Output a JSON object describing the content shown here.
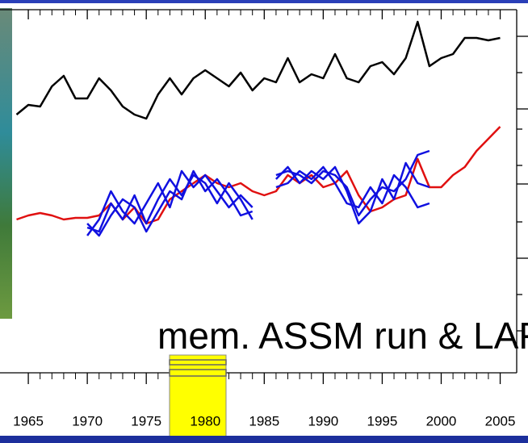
{
  "chart_data": {
    "type": "line",
    "annotation": "mem. ASSM run & LAF",
    "x": [
      1964,
      1965,
      1966,
      1967,
      1968,
      1969,
      1970,
      1971,
      1972,
      1973,
      1974,
      1975,
      1976,
      1977,
      1978,
      1979,
      1980,
      1981,
      1982,
      1983,
      1984,
      1985,
      1986,
      1987,
      1988,
      1989,
      1990,
      1991,
      1992,
      1993,
      1994,
      1995,
      1996,
      1997,
      1998,
      1999,
      2000,
      2001,
      2002,
      2003,
      2004,
      2005
    ],
    "xlim": [
      1962.6,
      2006.4
    ],
    "xticks": [
      1965,
      1970,
      1975,
      1980,
      1985,
      1990,
      1995,
      2000,
      2005
    ],
    "ylim": [
      0,
      450
    ],
    "series": [
      {
        "color": "#000000",
        "values": [
          320,
          332,
          330,
          355,
          368,
          340,
          340,
          365,
          350,
          330,
          320,
          315,
          345,
          365,
          345,
          365,
          375,
          365,
          355,
          372,
          350,
          365,
          360,
          390,
          360,
          370,
          365,
          395,
          365,
          360,
          380,
          385,
          370,
          390,
          435,
          380,
          390,
          395,
          415,
          415,
          412,
          415
        ]
      },
      {
        "color": "#e01010",
        "values": [
          190,
          195,
          198,
          195,
          190,
          192,
          192,
          195,
          210,
          190,
          205,
          185,
          190,
          215,
          225,
          235,
          245,
          235,
          230,
          235,
          225,
          220,
          225,
          245,
          235,
          245,
          230,
          235,
          250,
          220,
          200,
          205,
          215,
          220,
          265,
          230,
          230,
          245,
          255,
          275,
          290,
          305
        ]
      },
      {
        "color": "#1010e0",
        "values": [
          null,
          null,
          null,
          null,
          null,
          null,
          180,
          175,
          210,
          190,
          220,
          185,
          215,
          240,
          220,
          245,
          235,
          210,
          235,
          215,
          190,
          null,
          245,
          250,
          245,
          235,
          250,
          245,
          230,
          195,
          215,
          230,
          225,
          240,
          270,
          275,
          null,
          null,
          null,
          null,
          null,
          null
        ]
      },
      {
        "color": "#1010e0",
        "values": [
          null,
          null,
          null,
          null,
          null,
          null,
          170,
          190,
          225,
          200,
          185,
          210,
          235,
          205,
          250,
          230,
          245,
          225,
          205,
          220,
          205,
          null,
          240,
          255,
          235,
          250,
          240,
          255,
          225,
          185,
          200,
          240,
          215,
          260,
          235,
          230,
          null,
          null,
          null,
          null,
          null,
          null
        ]
      },
      {
        "color": "#1010e0",
        "values": [
          null,
          null,
          null,
          null,
          null,
          null,
          185,
          170,
          195,
          215,
          205,
          175,
          200,
          225,
          215,
          250,
          225,
          240,
          220,
          195,
          200,
          null,
          230,
          235,
          250,
          240,
          255,
          235,
          210,
          205,
          230,
          210,
          245,
          230,
          205,
          210,
          null,
          null,
          null,
          null,
          null,
          null
        ]
      }
    ]
  }
}
